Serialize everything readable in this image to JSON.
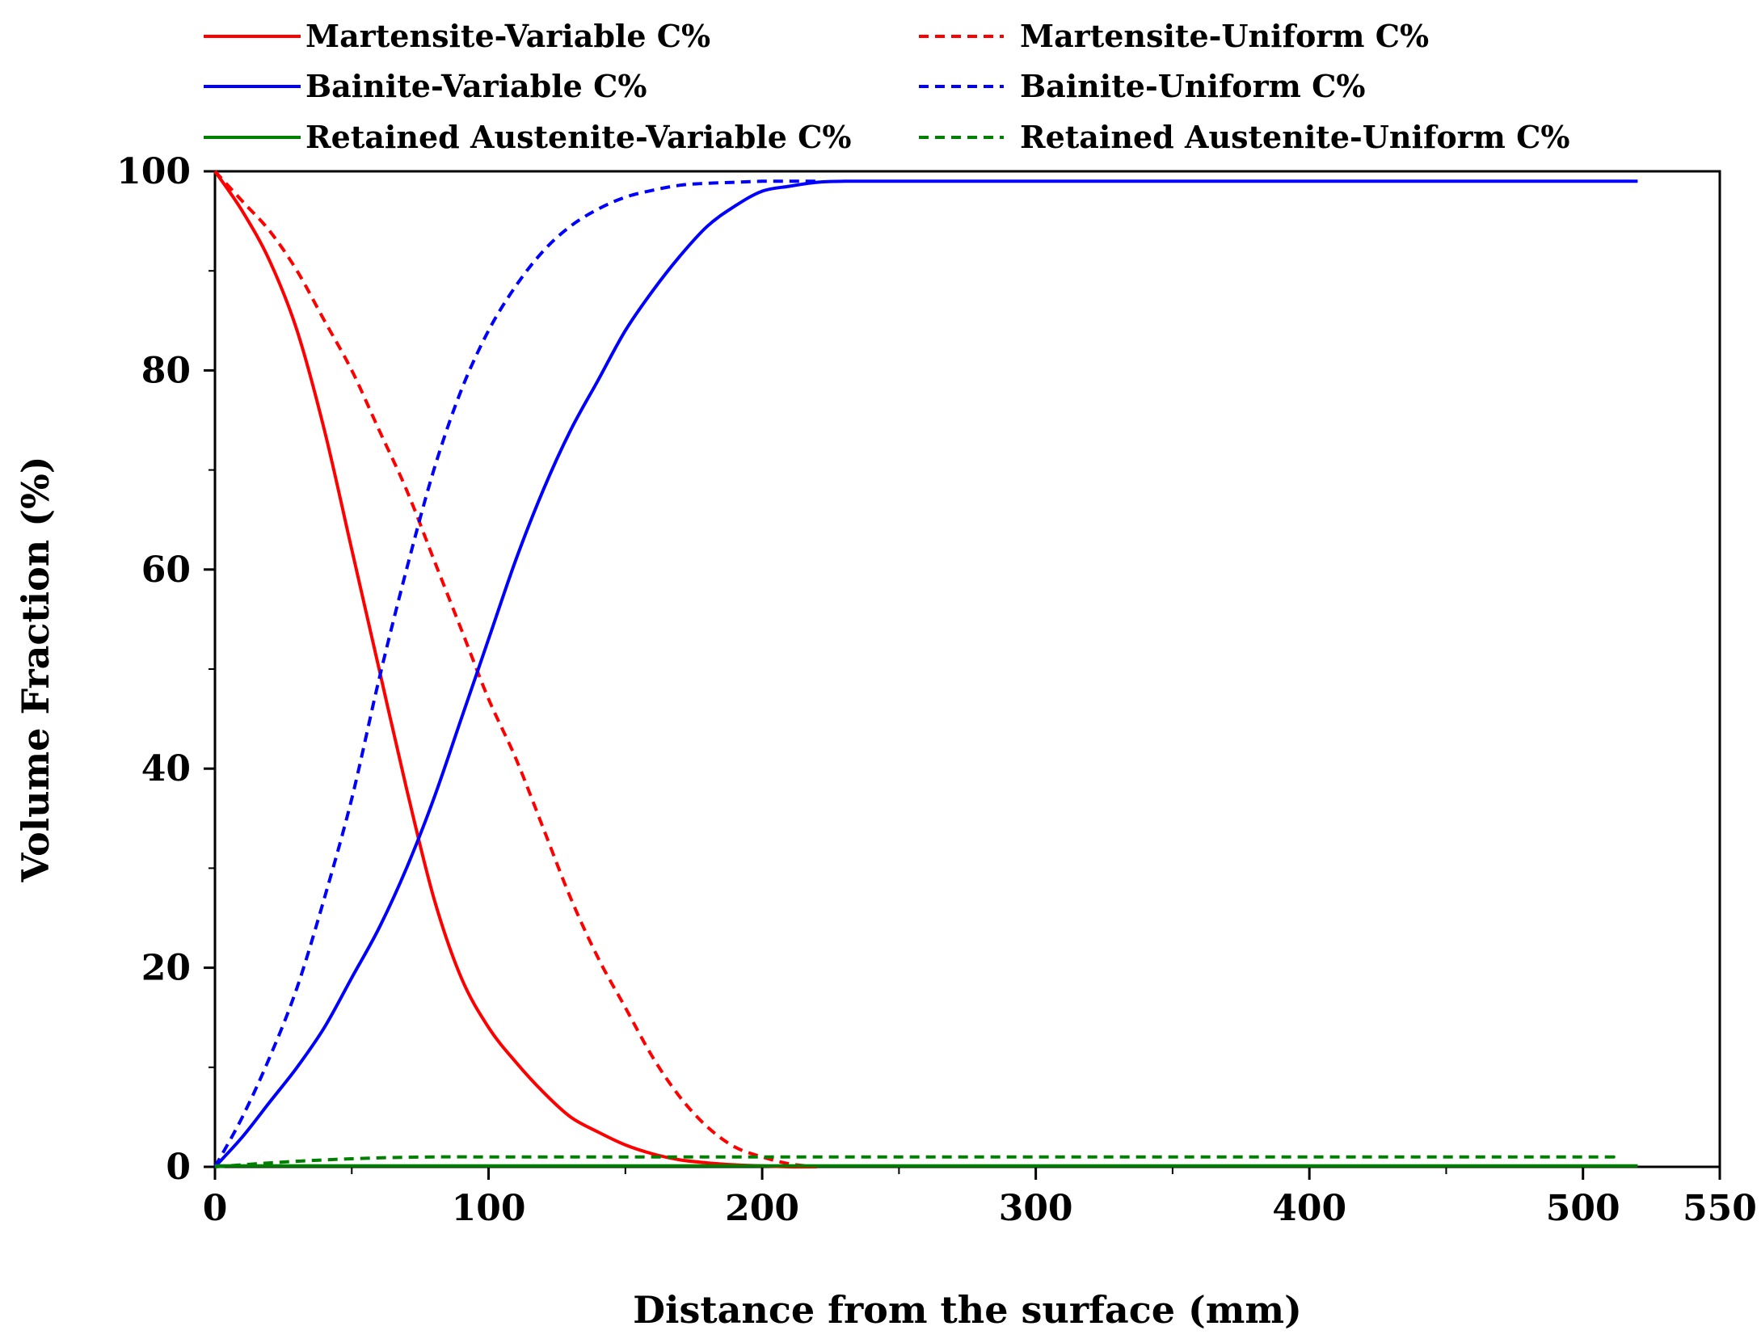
{
  "chart_data": {
    "type": "line",
    "title": "",
    "xlabel": "Distance from the surface (mm)",
    "ylabel": "Volume Fraction (%)",
    "xlim": [
      0,
      550
    ],
    "ylim": [
      0,
      100
    ],
    "xticks": [
      0,
      100,
      200,
      300,
      400,
      500,
      550
    ],
    "yticks": [
      0,
      20,
      40,
      60,
      80,
      100
    ],
    "xtick_labels": [
      "0",
      "100",
      "200",
      "300",
      "400",
      "500",
      "550"
    ],
    "ytick_labels": [
      "0",
      "20",
      "40",
      "60",
      "80",
      "100"
    ],
    "legend_position": "top",
    "grid": false,
    "series": [
      {
        "name": "Martensite-Variable C%",
        "color": "#ff0000",
        "style": "solid",
        "x": [
          0,
          10,
          20,
          30,
          40,
          50,
          60,
          70,
          80,
          90,
          100,
          110,
          120,
          130,
          140,
          150,
          160,
          170,
          180,
          190,
          200,
          210,
          220
        ],
        "y": [
          100,
          96,
          91,
          84,
          74,
          62,
          50,
          38,
          27,
          19,
          14,
          10.5,
          7.5,
          5,
          3.5,
          2.2,
          1.3,
          0.7,
          0.4,
          0.2,
          0.1,
          0,
          0
        ]
      },
      {
        "name": "Martensite-Uniform C%",
        "color": "#ff0000",
        "style": "dashed",
        "x": [
          0,
          10,
          20,
          30,
          40,
          50,
          60,
          70,
          80,
          90,
          100,
          110,
          120,
          130,
          140,
          150,
          160,
          170,
          180,
          190,
          200,
          210,
          220
        ],
        "y": [
          100,
          97,
          94,
          90,
          85,
          80,
          74,
          68,
          61,
          54,
          47,
          41,
          34,
          27,
          21,
          16,
          11,
          7,
          4,
          2,
          1,
          0.3,
          0
        ]
      },
      {
        "name": "Bainite-Variable C%",
        "color": "#0000ff",
        "style": "solid",
        "x": [
          0,
          10,
          20,
          30,
          40,
          50,
          60,
          70,
          80,
          90,
          100,
          110,
          120,
          130,
          140,
          150,
          160,
          170,
          180,
          190,
          200,
          210,
          220,
          230,
          250,
          300,
          400,
          500,
          520
        ],
        "y": [
          0,
          3,
          6.5,
          10,
          14,
          19,
          24,
          30,
          37,
          45,
          53,
          61,
          68,
          74,
          79,
          84,
          88,
          91.5,
          94.5,
          96.5,
          98,
          98.5,
          98.9,
          99,
          99,
          99,
          99,
          99,
          99
        ]
      },
      {
        "name": "Bainite-Uniform C%",
        "color": "#0000ff",
        "style": "dashed",
        "x": [
          0,
          10,
          20,
          30,
          40,
          50,
          60,
          70,
          80,
          90,
          100,
          110,
          120,
          130,
          140,
          150,
          160,
          170,
          180,
          190,
          200,
          210,
          220
        ],
        "y": [
          0,
          5,
          11,
          18,
          27,
          37,
          49,
          60,
          70,
          78,
          84,
          88.5,
          92,
          94.5,
          96.2,
          97.4,
          98.1,
          98.6,
          98.8,
          98.9,
          99,
          99,
          99
        ]
      },
      {
        "name": "Retained Austenite-Variable C%",
        "color": "#008000",
        "style": "solid",
        "x": [
          0,
          100,
          200,
          300,
          400,
          500,
          520
        ],
        "y": [
          0.1,
          0.1,
          0.1,
          0.1,
          0.1,
          0.1,
          0.1
        ]
      },
      {
        "name": "Retained Austenite-Uniform C%",
        "color": "#008000",
        "style": "dashed",
        "x": [
          0,
          20,
          40,
          60,
          80,
          100,
          200,
          300,
          400,
          500,
          510
        ],
        "y": [
          0,
          0.4,
          0.7,
          0.9,
          1,
          1,
          1,
          1,
          1,
          1,
          1
        ]
      }
    ]
  }
}
